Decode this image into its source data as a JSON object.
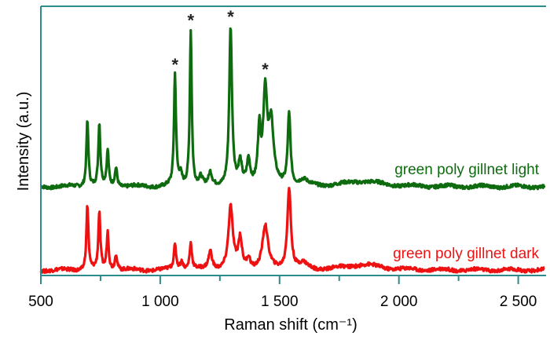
{
  "chart_data": {
    "type": "line",
    "title": "",
    "xlabel": "Raman shift (cm⁻¹)",
    "ylabel": "Intensity (a.u.)",
    "xlim": [
      500,
      2610
    ],
    "ylim": [
      0,
      100
    ],
    "xticks": [
      500,
      1000,
      1500,
      2000,
      2500
    ],
    "xtick_labels": [
      "500",
      "1 000",
      "1 500",
      "2 000",
      "2 500"
    ],
    "minor_xticks": [
      750,
      1250,
      1750,
      2250
    ],
    "grid": false,
    "annotations": [
      {
        "text": "*",
        "x": 1062
      },
      {
        "text": "*",
        "x": 1128
      },
      {
        "text": "*",
        "x": 1295
      },
      {
        "text": "*",
        "x": 1440
      }
    ],
    "series": [
      {
        "name": "green poly gillnet light",
        "color": "#0f6b0f",
        "baseline": 33,
        "peaks": [
          {
            "x": 695,
            "h": 24.7,
            "w": 5
          },
          {
            "x": 745,
            "h": 23,
            "w": 5
          },
          {
            "x": 780,
            "h": 13,
            "w": 5
          },
          {
            "x": 815,
            "h": 7,
            "w": 6
          },
          {
            "x": 1062,
            "h": 41,
            "w": 5
          },
          {
            "x": 1085,
            "h": 4,
            "w": 8
          },
          {
            "x": 1128,
            "h": 57.7,
            "w": 5
          },
          {
            "x": 1170,
            "h": 3,
            "w": 8
          },
          {
            "x": 1210,
            "h": 4.6,
            "w": 8
          },
          {
            "x": 1295,
            "h": 58.8,
            "w": 7
          },
          {
            "x": 1335,
            "h": 8,
            "w": 8
          },
          {
            "x": 1370,
            "h": 9,
            "w": 8
          },
          {
            "x": 1415,
            "h": 20,
            "w": 7
          },
          {
            "x": 1440,
            "h": 34,
            "w": 10
          },
          {
            "x": 1465,
            "h": 22,
            "w": 12
          },
          {
            "x": 1540,
            "h": 26.5,
            "w": 7
          },
          {
            "x": 1600,
            "h": 2,
            "w": 20
          },
          {
            "x": 1850,
            "h": 2,
            "w": 90
          }
        ]
      },
      {
        "name": "green poly gillnet dark",
        "color": "#ee1111",
        "baseline": 2,
        "peaks": [
          {
            "x": 695,
            "h": 24,
            "w": 5
          },
          {
            "x": 745,
            "h": 21,
            "w": 5
          },
          {
            "x": 780,
            "h": 14,
            "w": 5
          },
          {
            "x": 815,
            "h": 6,
            "w": 6
          },
          {
            "x": 1062,
            "h": 9,
            "w": 6
          },
          {
            "x": 1090,
            "h": 3,
            "w": 8
          },
          {
            "x": 1128,
            "h": 9.7,
            "w": 6
          },
          {
            "x": 1210,
            "h": 6.8,
            "w": 9
          },
          {
            "x": 1295,
            "h": 23,
            "w": 11
          },
          {
            "x": 1335,
            "h": 11,
            "w": 9
          },
          {
            "x": 1370,
            "h": 4,
            "w": 9
          },
          {
            "x": 1440,
            "h": 16,
            "w": 14
          },
          {
            "x": 1540,
            "h": 30,
            "w": 9
          },
          {
            "x": 1600,
            "h": 2,
            "w": 20
          },
          {
            "x": 1850,
            "h": 2,
            "w": 90
          }
        ]
      }
    ]
  }
}
